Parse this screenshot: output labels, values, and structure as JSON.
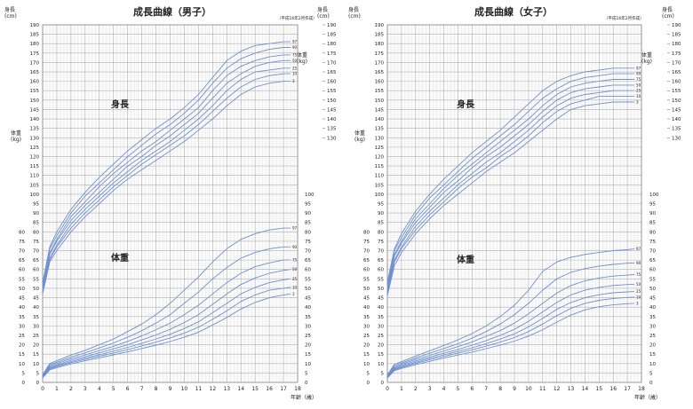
{
  "colors": {
    "grid_minor": "#d9d9d9",
    "grid_major": "#a9a9a9",
    "curve": "#6f8fcf",
    "text": "#222222"
  },
  "charts": [
    {
      "title": "成長曲線（男子）",
      "note": "（平成16年2月作成）",
      "height_unit_top": "身長",
      "height_unit_bottom": "(cm)",
      "weight_unit_top": "体重",
      "weight_unit_bottom": "(kg)",
      "height_label": "身長",
      "weight_label": "体重",
      "x_label": "年齢（歳）"
    },
    {
      "title": "成長曲線（女子）",
      "note": "（平成16年2月作成）",
      "height_unit_top": "身長",
      "height_unit_bottom": "(cm)",
      "weight_unit_top": "体重",
      "weight_unit_bottom": "(kg)",
      "height_label": "身長",
      "weight_label": "体重",
      "x_label": "年齢（歳）"
    }
  ],
  "chart_data": [
    {
      "type": "line",
      "title": "成長曲線（男子）",
      "xlabel": "年齢（歳）",
      "x_ticks": [
        "0",
        "1",
        "2",
        "3",
        "4",
        "5",
        "6",
        "7",
        "8",
        "9",
        "10",
        "11",
        "12",
        "13",
        "14",
        "15",
        "16",
        "17",
        "18"
      ],
      "xlim": [
        0,
        18
      ],
      "height_axis": {
        "label": "身長 (cm)",
        "ylim": [
          0,
          190
        ],
        "ticks": [
          "0",
          "5",
          "10",
          "15",
          "20",
          "25",
          "30",
          "35",
          "40",
          "45",
          "50",
          "55",
          "60",
          "65",
          "70",
          "75",
          "80",
          "85",
          "90",
          "95",
          "100",
          "105",
          "110",
          "115",
          "120",
          "125",
          "130",
          "135",
          "140",
          "145",
          "150",
          "155",
          "160",
          "165",
          "170",
          "175",
          "180",
          "185",
          "190"
        ]
      },
      "weight_axis": {
        "label": "体重 (kg)",
        "ylim": [
          0,
          80
        ],
        "ticks": [
          "0",
          "5",
          "10",
          "15",
          "20",
          "25",
          "30",
          "35",
          "40",
          "45",
          "50",
          "55",
          "60",
          "65",
          "70",
          "75",
          "80"
        ]
      },
      "right_height_ticks": [
        "130",
        "135",
        "140",
        "145",
        "150",
        "155",
        "160",
        "165",
        "170",
        "175",
        "180",
        "185",
        "190"
      ],
      "right_weight_ticks": [
        "0",
        "5",
        "10",
        "15",
        "20",
        "25",
        "30",
        "35",
        "40",
        "45",
        "50",
        "55",
        "60",
        "65",
        "70",
        "75",
        "80",
        "85",
        "90",
        "95",
        "100"
      ],
      "x": [
        0,
        0.5,
        1,
        2,
        3,
        4,
        5,
        6,
        7,
        8,
        9,
        10,
        11,
        12,
        13,
        14,
        15,
        16,
        17,
        17.5
      ],
      "height_series": [
        {
          "name": "97",
          "values": [
            53,
            72,
            80,
            92,
            101,
            109,
            116,
            123,
            129,
            135,
            140,
            146,
            153,
            162,
            171,
            176,
            179,
            180,
            181,
            181
          ]
        },
        {
          "name": "90",
          "values": [
            52,
            71,
            78,
            90,
            99,
            106,
            113,
            120,
            126,
            132,
            137,
            143,
            150,
            159,
            167,
            172,
            175,
            177,
            178,
            178
          ]
        },
        {
          "name": "75",
          "values": [
            51,
            69,
            76,
            88,
            96,
            104,
            111,
            117,
            123,
            128,
            134,
            140,
            146,
            155,
            163,
            168,
            171,
            173,
            174,
            174
          ]
        },
        {
          "name": "50",
          "values": [
            50,
            68,
            75,
            86,
            94,
            101,
            108,
            115,
            120,
            126,
            131,
            137,
            143,
            151,
            159,
            164,
            168,
            170,
            171,
            171
          ]
        },
        {
          "name": "25",
          "values": [
            49,
            66,
            73,
            84,
            92,
            99,
            106,
            112,
            118,
            123,
            128,
            134,
            140,
            147,
            155,
            161,
            165,
            166,
            167,
            167
          ]
        },
        {
          "name": "10",
          "values": [
            48,
            65,
            72,
            82,
            90,
            97,
            104,
            110,
            116,
            121,
            126,
            131,
            137,
            144,
            151,
            157,
            161,
            163,
            164,
            164
          ]
        },
        {
          "name": "3",
          "values": [
            47,
            64,
            70,
            80,
            88,
            95,
            102,
            108,
            113,
            118,
            123,
            128,
            134,
            140,
            147,
            153,
            157,
            159,
            160,
            160
          ]
        }
      ],
      "weight_series": [
        {
          "name": "97",
          "values": [
            4,
            10,
            11.5,
            14.5,
            17,
            20,
            23,
            27,
            31,
            36,
            42,
            49,
            56,
            64,
            71,
            76,
            79,
            81,
            82,
            82
          ]
        },
        {
          "name": "90",
          "values": [
            3.7,
            9.3,
            10.7,
            13.5,
            15.7,
            18.3,
            21,
            24,
            27.5,
            31.5,
            36,
            42,
            48,
            55,
            61,
            66,
            69,
            71,
            72,
            72
          ]
        },
        {
          "name": "75",
          "values": [
            3.4,
            8.7,
            10,
            12.6,
            14.6,
            16.9,
            19.2,
            21.8,
            24.7,
            28,
            31.5,
            36,
            41,
            47,
            53,
            58,
            61.5,
            63.5,
            65,
            65
          ]
        },
        {
          "name": "50",
          "values": [
            3.1,
            8.1,
            9.3,
            11.8,
            13.7,
            15.7,
            17.8,
            20,
            22.6,
            25.2,
            28.2,
            31.8,
            36,
            41.5,
            47,
            52,
            55.5,
            58,
            59.5,
            60
          ]
        },
        {
          "name": "25",
          "values": [
            2.9,
            7.6,
            8.8,
            11.1,
            12.9,
            14.7,
            16.6,
            18.6,
            20.8,
            23.1,
            25.6,
            28.6,
            32.2,
            37,
            42,
            47,
            50.5,
            53,
            54.5,
            55
          ]
        },
        {
          "name": "10",
          "values": [
            2.7,
            7.1,
            8.3,
            10.5,
            12.2,
            13.9,
            15.6,
            17.4,
            19.4,
            21.4,
            23.6,
            26.2,
            29.3,
            33.5,
            38,
            43,
            46.5,
            49,
            50,
            50.5
          ]
        },
        {
          "name": "3",
          "values": [
            2.4,
            6.6,
            7.8,
            9.8,
            11.5,
            13,
            14.6,
            16.2,
            18,
            19.8,
            21.7,
            24,
            26.7,
            30.5,
            34.5,
            39,
            42.5,
            45,
            46.5,
            47
          ]
        }
      ],
      "grid": true
    },
    {
      "type": "line",
      "title": "成長曲線（女子）",
      "xlabel": "年齢（歳）",
      "x_ticks": [
        "0",
        "1",
        "2",
        "3",
        "4",
        "5",
        "6",
        "7",
        "8",
        "9",
        "10",
        "11",
        "12",
        "13",
        "14",
        "15",
        "16",
        "17",
        "18"
      ],
      "xlim": [
        0,
        18
      ],
      "height_axis": {
        "label": "身長 (cm)",
        "ylim": [
          0,
          190
        ],
        "ticks": [
          "0",
          "5",
          "10",
          "15",
          "20",
          "25",
          "30",
          "35",
          "40",
          "45",
          "50",
          "55",
          "60",
          "65",
          "70",
          "75",
          "80",
          "85",
          "90",
          "95",
          "100",
          "105",
          "110",
          "115",
          "120",
          "125",
          "130",
          "135",
          "140",
          "145",
          "150",
          "155",
          "160",
          "165",
          "170",
          "175",
          "180",
          "185",
          "190"
        ]
      },
      "weight_axis": {
        "label": "体重 (kg)",
        "ylim": [
          0,
          80
        ],
        "ticks": [
          "0",
          "5",
          "10",
          "15",
          "20",
          "25",
          "30",
          "35",
          "40",
          "45",
          "50",
          "55",
          "60",
          "65",
          "70",
          "75",
          "80"
        ]
      },
      "right_height_ticks": [
        "130",
        "135",
        "140",
        "145",
        "150",
        "155",
        "160",
        "165",
        "170",
        "175",
        "180",
        "185",
        "190"
      ],
      "right_weight_ticks": [
        "0",
        "5",
        "10",
        "15",
        "20",
        "25",
        "30",
        "35",
        "40",
        "45",
        "50",
        "55",
        "60",
        "65",
        "70",
        "75",
        "80",
        "85",
        "90",
        "95",
        "100"
      ],
      "x": [
        0,
        0.5,
        1,
        2,
        3,
        4,
        5,
        6,
        7,
        8,
        9,
        10,
        11,
        12,
        13,
        14,
        15,
        16,
        17,
        17.5
      ],
      "height_series": [
        {
          "name": "97",
          "values": [
            53,
            71,
            79,
            91,
            100,
            108,
            115,
            122,
            128,
            134,
            141,
            148,
            155,
            160,
            163,
            165,
            166,
            167,
            167,
            167
          ]
        },
        {
          "name": "90",
          "values": [
            52,
            70,
            77,
            89,
            98,
            105,
            112,
            119,
            125,
            131,
            137,
            144,
            151,
            156,
            160,
            162,
            163,
            164,
            164,
            164
          ]
        },
        {
          "name": "75",
          "values": [
            51,
            68,
            75,
            87,
            95,
            103,
            110,
            116,
            122,
            128,
            134,
            140,
            147,
            153,
            157,
            159,
            160,
            161,
            161,
            161
          ]
        },
        {
          "name": "50",
          "values": [
            49,
            67,
            74,
            85,
            93,
            101,
            107,
            114,
            120,
            125,
            131,
            137,
            144,
            150,
            154,
            156,
            157,
            158,
            158,
            158
          ]
        },
        {
          "name": "25",
          "values": [
            48,
            65,
            72,
            83,
            91,
            98,
            105,
            111,
            117,
            122,
            128,
            134,
            141,
            147,
            151,
            153,
            154,
            155,
            155,
            155
          ]
        },
        {
          "name": "10",
          "values": [
            47,
            64,
            71,
            81,
            89,
            96,
            103,
            109,
            114,
            120,
            125,
            131,
            138,
            144,
            148,
            150,
            152,
            152,
            152,
            152
          ]
        },
        {
          "name": "3",
          "values": [
            46,
            62,
            69,
            79,
            87,
            94,
            100,
            106,
            112,
            117,
            122,
            128,
            134,
            140,
            145,
            147,
            148,
            149,
            149,
            149
          ]
        }
      ],
      "weight_series": [
        {
          "name": "97",
          "values": [
            4,
            9.6,
            11,
            14,
            16.8,
            19.6,
            22.6,
            26,
            30,
            35,
            41,
            49,
            59,
            64,
            66.5,
            68,
            69,
            70,
            70.5,
            71
          ]
        },
        {
          "name": "90",
          "values": [
            3.6,
            8.9,
            10.3,
            13,
            15.5,
            18,
            20.5,
            23.5,
            27,
            31,
            36,
            42,
            49,
            55,
            58.5,
            60.5,
            61.8,
            62.7,
            63.3,
            63.5
          ]
        },
        {
          "name": "75",
          "values": [
            3.3,
            8.2,
            9.6,
            12.2,
            14.4,
            16.7,
            19,
            21.5,
            24.5,
            27.5,
            31.5,
            36.5,
            42,
            47.5,
            51.5,
            54,
            55.5,
            56.5,
            57,
            57.3
          ]
        },
        {
          "name": "50",
          "values": [
            3,
            7.6,
            9,
            11.4,
            13.5,
            15.5,
            17.5,
            19.8,
            22.2,
            25,
            28.2,
            32.5,
            37.5,
            42.5,
            46.5,
            49,
            50.5,
            51.5,
            52,
            52.2
          ]
        },
        {
          "name": "25",
          "values": [
            2.8,
            7.1,
            8.4,
            10.7,
            12.7,
            14.6,
            16.4,
            18.4,
            20.6,
            23,
            25.8,
            29.5,
            34,
            38.8,
            42.5,
            45,
            46.6,
            47.6,
            48.1,
            48.3
          ]
        },
        {
          "name": "10",
          "values": [
            2.6,
            6.7,
            7.9,
            10.1,
            12,
            13.8,
            15.5,
            17.3,
            19.3,
            21.4,
            23.8,
            27,
            31,
            35.5,
            39.3,
            42,
            43.6,
            44.6,
            45.1,
            45.3
          ]
        },
        {
          "name": "3",
          "values": [
            2.3,
            6.2,
            7.4,
            9.4,
            11.2,
            12.9,
            14.5,
            16.1,
            17.9,
            19.8,
            21.9,
            24.6,
            28,
            32,
            35.8,
            38.5,
            40.2,
            41.2,
            41.8,
            42
          ]
        }
      ],
      "grid": true
    }
  ]
}
